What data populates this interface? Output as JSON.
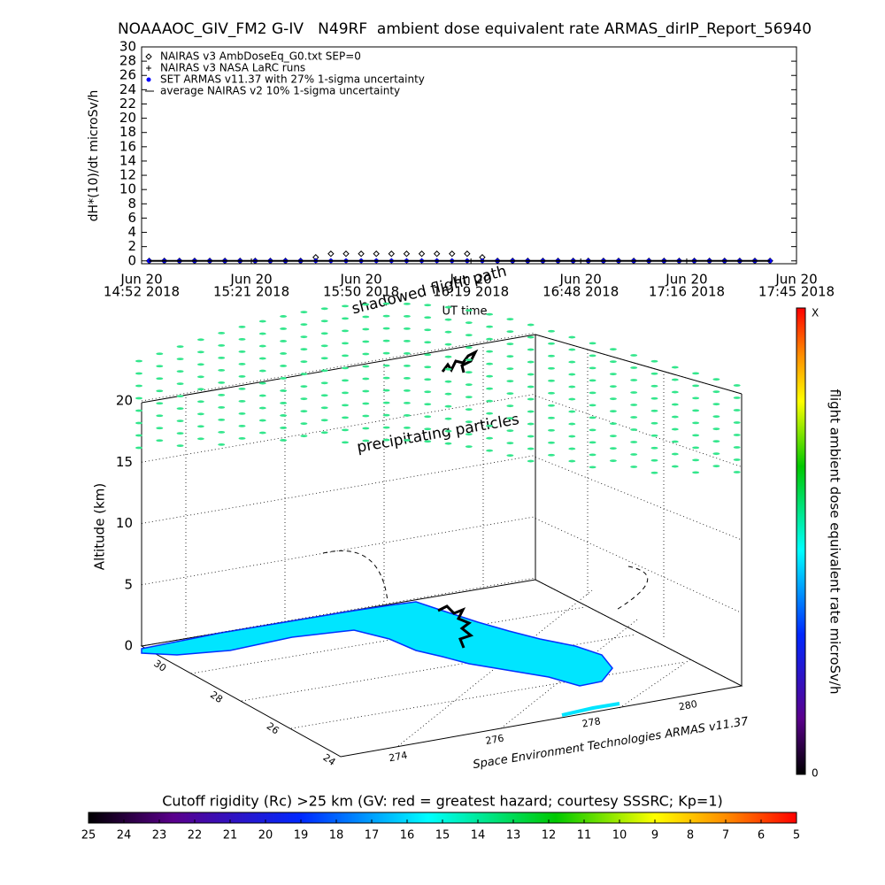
{
  "chart_data": {
    "type": "line",
    "title": "NOAAAOC_GIV_FM2 G-IV   N49RF  ambient dose equivalent rate ARMAS_dirIP_Report_56940",
    "y_label": "dH*(10)/dt microSv/h",
    "x_label": "UT time",
    "x": [
      "2018-06-20 14:54",
      "2018-06-20 14:58",
      "2018-06-20 15:02",
      "2018-06-20 15:06",
      "2018-06-20 15:10",
      "2018-06-20 15:14",
      "2018-06-20 15:18",
      "2018-06-20 15:22",
      "2018-06-20 15:26",
      "2018-06-20 15:30",
      "2018-06-20 15:34",
      "2018-06-20 15:38",
      "2018-06-20 15:42",
      "2018-06-20 15:46",
      "2018-06-20 15:50",
      "2018-06-20 15:54",
      "2018-06-20 15:58",
      "2018-06-20 16:02",
      "2018-06-20 16:06",
      "2018-06-20 16:10",
      "2018-06-20 16:14",
      "2018-06-20 16:18",
      "2018-06-20 16:22",
      "2018-06-20 16:26",
      "2018-06-20 16:30",
      "2018-06-20 16:34",
      "2018-06-20 16:38",
      "2018-06-20 16:42",
      "2018-06-20 16:46",
      "2018-06-20 16:50",
      "2018-06-20 16:54",
      "2018-06-20 16:58",
      "2018-06-20 17:02",
      "2018-06-20 17:06",
      "2018-06-20 17:10",
      "2018-06-20 17:14",
      "2018-06-20 17:18",
      "2018-06-20 17:22",
      "2018-06-20 17:26",
      "2018-06-20 17:30",
      "2018-06-20 17:34",
      "2018-06-20 17:38"
    ],
    "series": [
      {
        "name": "NAIRAS v3 AmbDoseEq_G0.txt SEP=0",
        "marker": "diamond",
        "color": "#000000",
        "values": [
          0,
          0,
          0,
          0,
          0,
          0,
          0,
          0,
          0,
          0,
          0,
          0.5,
          1,
          1,
          1,
          1,
          1,
          1,
          1,
          1,
          1,
          1,
          0.5,
          0,
          0,
          0,
          0,
          0,
          0,
          0,
          0,
          0,
          0,
          0,
          0,
          0,
          0,
          0,
          0,
          0,
          0,
          0
        ]
      },
      {
        "name": "NAIRAS v3 NASA LaRC runs",
        "marker": "plus",
        "color": "#000000",
        "values": [
          0,
          0,
          0,
          0,
          0,
          0,
          0,
          0,
          0,
          0,
          0,
          0,
          0,
          0,
          0,
          0,
          0,
          0,
          0,
          0,
          0,
          0,
          0,
          0,
          0,
          0,
          0,
          0,
          0,
          0,
          0,
          0,
          0,
          0,
          0,
          0,
          0,
          0,
          0,
          0,
          0,
          0
        ]
      },
      {
        "name": "SET ARMAS v11.37 with 27% 1-sigma uncertainty",
        "marker": "dot",
        "color": "#0000ff",
        "values": [
          0,
          0,
          0,
          0,
          0,
          0,
          0,
          0,
          0,
          0,
          0,
          0,
          0,
          0,
          0,
          0,
          0,
          0,
          0,
          0,
          0,
          0,
          0,
          0,
          0,
          0,
          0,
          0,
          0,
          0,
          0,
          0,
          0,
          0,
          0,
          0,
          0,
          0,
          0,
          0,
          0,
          0
        ]
      },
      {
        "name": "average NAIRAS v2 10% 1-sigma uncertainty",
        "marker": "line",
        "color": "#000000",
        "values": [
          0,
          0,
          0,
          0,
          0,
          0,
          0,
          0,
          0,
          0,
          0,
          0,
          0,
          0,
          0,
          0,
          0,
          0,
          0,
          0,
          0,
          0,
          0,
          0,
          0,
          0,
          0,
          0,
          0,
          0,
          0,
          0,
          0,
          0,
          0,
          0,
          0,
          0,
          0,
          0,
          0,
          0
        ]
      }
    ],
    "xlim": [
      "2018-06-20 14:52",
      "2018-06-20 17:45"
    ],
    "xticks": [
      {
        "value": "2018-06-20 14:52",
        "label": [
          "Jun 20",
          "14:52 2018"
        ]
      },
      {
        "value": "2018-06-20 15:21",
        "label": [
          "Jun 20",
          "15:21 2018"
        ]
      },
      {
        "value": "2018-06-20 15:50",
        "label": [
          "Jun 20",
          "15:50 2018"
        ]
      },
      {
        "value": "2018-06-20 16:19",
        "label": [
          "Jun 20",
          "16:19 2018"
        ]
      },
      {
        "value": "2018-06-20 16:48",
        "label": [
          "Jun 20",
          "16:48 2018"
        ]
      },
      {
        "value": "2018-06-20 17:16",
        "label": [
          "Jun 20",
          "17:16 2018"
        ]
      },
      {
        "value": "2018-06-20 17:45",
        "label": [
          "Jun 20",
          "17:45 2018"
        ]
      }
    ],
    "ylim": [
      -0.4,
      30
    ],
    "yticks": [
      0,
      2,
      4,
      6,
      8,
      10,
      12,
      14,
      16,
      18,
      20,
      22,
      24,
      26,
      28,
      30
    ]
  },
  "panel_3d": {
    "z_label": "Altitude (km)",
    "z_ticks": [
      0,
      5,
      10,
      15,
      20
    ],
    "lat_ticks": [
      30,
      28,
      26,
      24
    ],
    "lon_ticks": [
      274,
      276,
      278,
      280
    ],
    "path_label": "shadowed flight path",
    "particles_label": "precipitating particles",
    "credit": "Space Environment Technologies ARMAS v11.37"
  },
  "dose_colorbar": {
    "label": "flight ambient dose equivalent rate microSv/h",
    "max_label": "X",
    "min_label": "0"
  },
  "rigidity_colorbar": {
    "title": "Cutoff rigidity (Rc) >25 km (GV: red = greatest hazard; courtesy SSSRC; Kp=1)",
    "ticks": [
      25,
      24,
      23,
      22,
      21,
      20,
      19,
      18,
      17,
      16,
      15,
      14,
      13,
      12,
      11,
      10,
      9,
      8,
      7,
      6,
      5
    ]
  }
}
